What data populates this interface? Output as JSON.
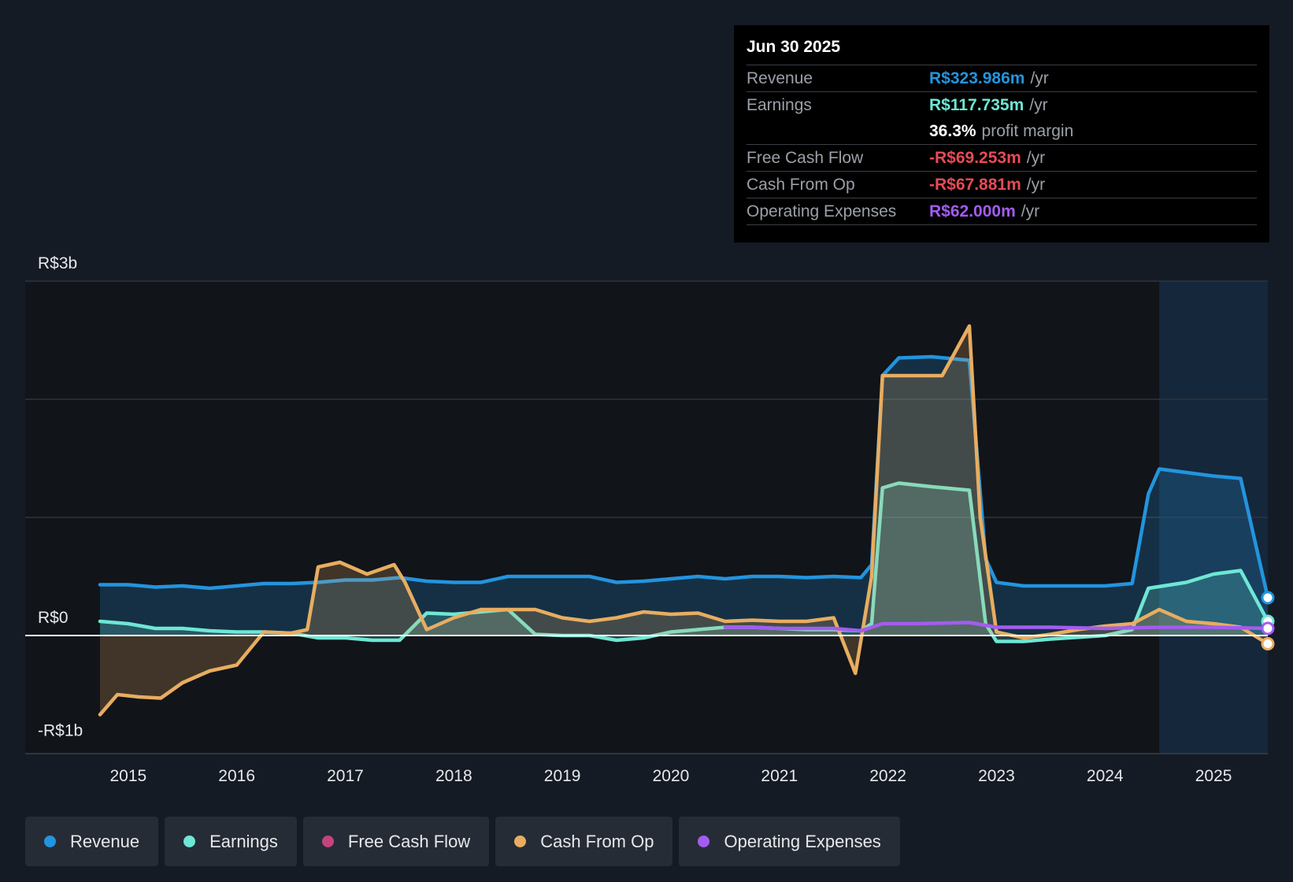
{
  "tooltip": {
    "date": "Jun 30 2025",
    "rows": [
      {
        "label": "Revenue",
        "value": "R$323.986m",
        "unit": "/yr",
        "color": "#2394df"
      },
      {
        "label": "Earnings",
        "value": "R$117.735m",
        "unit": "/yr",
        "color": "#6ee7d5"
      },
      {
        "label": "",
        "value": "36.3%",
        "unit": "profit margin",
        "color": "#ffffff"
      },
      {
        "label": "Free Cash Flow",
        "value": "-R$69.253m",
        "unit": "/yr",
        "color": "#e64b55"
      },
      {
        "label": "Cash From Op",
        "value": "-R$67.881m",
        "unit": "/yr",
        "color": "#e64b55"
      },
      {
        "label": "Operating Expenses",
        "value": "R$62.000m",
        "unit": "/yr",
        "color": "#a35cf0"
      }
    ]
  },
  "legend": [
    {
      "label": "Revenue",
      "color": "#2394df"
    },
    {
      "label": "Earnings",
      "color": "#6ee7d5"
    },
    {
      "label": "Free Cash Flow",
      "color": "#c2447e"
    },
    {
      "label": "Cash From Op",
      "color": "#e8ad60"
    },
    {
      "label": "Operating Expenses",
      "color": "#a35cf0"
    }
  ],
  "chart_data": {
    "type": "line",
    "y_labels": [
      "R$3b",
      "R$0",
      "-R$1b"
    ],
    "ylim": [
      -1.0,
      3.0
    ],
    "y_unit": "R$ billions",
    "xlim": [
      2014.74,
      2025.5
    ],
    "x_ticks": [
      "2015",
      "2016",
      "2017",
      "2018",
      "2019",
      "2020",
      "2021",
      "2022",
      "2023",
      "2024",
      "2025"
    ],
    "gridlines": true,
    "highlight_range": [
      2024.5,
      2025.5
    ],
    "series": [
      {
        "name": "Revenue",
        "color": "#2394df",
        "fill": true,
        "points": [
          [
            2014.74,
            0.43
          ],
          [
            2015.0,
            0.43
          ],
          [
            2015.25,
            0.41
          ],
          [
            2015.5,
            0.42
          ],
          [
            2015.75,
            0.4
          ],
          [
            2016.0,
            0.42
          ],
          [
            2016.25,
            0.44
          ],
          [
            2016.5,
            0.44
          ],
          [
            2016.75,
            0.45
          ],
          [
            2017.0,
            0.47
          ],
          [
            2017.25,
            0.47
          ],
          [
            2017.5,
            0.49
          ],
          [
            2017.75,
            0.46
          ],
          [
            2018.0,
            0.45
          ],
          [
            2018.25,
            0.45
          ],
          [
            2018.5,
            0.5
          ],
          [
            2018.75,
            0.5
          ],
          [
            2019.0,
            0.5
          ],
          [
            2019.25,
            0.5
          ],
          [
            2019.5,
            0.45
          ],
          [
            2019.75,
            0.46
          ],
          [
            2020.0,
            0.48
          ],
          [
            2020.25,
            0.5
          ],
          [
            2020.5,
            0.48
          ],
          [
            2020.75,
            0.5
          ],
          [
            2021.0,
            0.5
          ],
          [
            2021.25,
            0.49
          ],
          [
            2021.5,
            0.5
          ],
          [
            2021.75,
            0.49
          ],
          [
            2021.85,
            0.6
          ],
          [
            2021.95,
            2.2
          ],
          [
            2022.1,
            2.35
          ],
          [
            2022.4,
            2.36
          ],
          [
            2022.75,
            2.33
          ],
          [
            2022.9,
            0.65
          ],
          [
            2023.0,
            0.45
          ],
          [
            2023.25,
            0.42
          ],
          [
            2023.5,
            0.42
          ],
          [
            2024.0,
            0.42
          ],
          [
            2024.25,
            0.44
          ],
          [
            2024.4,
            1.2
          ],
          [
            2024.5,
            1.41
          ],
          [
            2024.75,
            1.38
          ],
          [
            2025.0,
            1.35
          ],
          [
            2025.25,
            1.33
          ],
          [
            2025.5,
            0.32
          ]
        ]
      },
      {
        "name": "Earnings",
        "color": "#6ee7d5",
        "fill": true,
        "points": [
          [
            2014.74,
            0.12
          ],
          [
            2015.0,
            0.1
          ],
          [
            2015.25,
            0.06
          ],
          [
            2015.5,
            0.06
          ],
          [
            2015.75,
            0.04
          ],
          [
            2016.0,
            0.03
          ],
          [
            2016.25,
            0.03
          ],
          [
            2016.5,
            0.02
          ],
          [
            2016.75,
            -0.02
          ],
          [
            2017.0,
            -0.02
          ],
          [
            2017.25,
            -0.04
          ],
          [
            2017.5,
            -0.04
          ],
          [
            2017.75,
            0.19
          ],
          [
            2018.0,
            0.18
          ],
          [
            2018.25,
            0.2
          ],
          [
            2018.5,
            0.22
          ],
          [
            2018.75,
            0.01
          ],
          [
            2019.0,
            0.0
          ],
          [
            2019.25,
            0.0
          ],
          [
            2019.5,
            -0.04
          ],
          [
            2019.75,
            -0.02
          ],
          [
            2020.0,
            0.03
          ],
          [
            2020.25,
            0.05
          ],
          [
            2020.5,
            0.07
          ],
          [
            2020.75,
            0.07
          ],
          [
            2021.0,
            0.06
          ],
          [
            2021.25,
            0.05
          ],
          [
            2021.5,
            0.05
          ],
          [
            2021.75,
            0.04
          ],
          [
            2021.85,
            0.1
          ],
          [
            2021.95,
            1.25
          ],
          [
            2022.1,
            1.29
          ],
          [
            2022.4,
            1.26
          ],
          [
            2022.75,
            1.23
          ],
          [
            2022.9,
            0.1
          ],
          [
            2023.0,
            -0.05
          ],
          [
            2023.25,
            -0.05
          ],
          [
            2023.5,
            -0.03
          ],
          [
            2024.0,
            0.0
          ],
          [
            2024.25,
            0.05
          ],
          [
            2024.4,
            0.4
          ],
          [
            2024.75,
            0.45
          ],
          [
            2025.0,
            0.52
          ],
          [
            2025.25,
            0.55
          ],
          [
            2025.5,
            0.12
          ]
        ]
      },
      {
        "name": "Cash From Op",
        "color": "#e8ad60",
        "fill": true,
        "points": [
          [
            2014.74,
            -0.67
          ],
          [
            2014.9,
            -0.5
          ],
          [
            2015.1,
            -0.52
          ],
          [
            2015.3,
            -0.53
          ],
          [
            2015.5,
            -0.4
          ],
          [
            2015.75,
            -0.3
          ],
          [
            2016.0,
            -0.25
          ],
          [
            2016.25,
            0.03
          ],
          [
            2016.5,
            0.02
          ],
          [
            2016.65,
            0.05
          ],
          [
            2016.75,
            0.58
          ],
          [
            2016.95,
            0.62
          ],
          [
            2017.2,
            0.52
          ],
          [
            2017.45,
            0.6
          ],
          [
            2017.55,
            0.45
          ],
          [
            2017.75,
            0.05
          ],
          [
            2018.0,
            0.15
          ],
          [
            2018.25,
            0.22
          ],
          [
            2018.5,
            0.22
          ],
          [
            2018.75,
            0.22
          ],
          [
            2019.0,
            0.15
          ],
          [
            2019.25,
            0.12
          ],
          [
            2019.5,
            0.15
          ],
          [
            2019.75,
            0.2
          ],
          [
            2020.0,
            0.18
          ],
          [
            2020.25,
            0.19
          ],
          [
            2020.5,
            0.12
          ],
          [
            2020.75,
            0.13
          ],
          [
            2021.0,
            0.12
          ],
          [
            2021.25,
            0.12
          ],
          [
            2021.5,
            0.15
          ],
          [
            2021.7,
            -0.32
          ],
          [
            2021.85,
            0.5
          ],
          [
            2021.95,
            2.2
          ],
          [
            2022.2,
            2.2
          ],
          [
            2022.5,
            2.2
          ],
          [
            2022.75,
            2.62
          ],
          [
            2022.85,
            1.0
          ],
          [
            2023.0,
            0.03
          ],
          [
            2023.25,
            -0.02
          ],
          [
            2023.5,
            0.01
          ],
          [
            2023.75,
            0.05
          ],
          [
            2024.0,
            0.08
          ],
          [
            2024.25,
            0.1
          ],
          [
            2024.5,
            0.22
          ],
          [
            2024.75,
            0.12
          ],
          [
            2025.0,
            0.1
          ],
          [
            2025.25,
            0.07
          ],
          [
            2025.5,
            -0.07
          ]
        ]
      },
      {
        "name": "Operating Expenses",
        "color": "#a35cf0",
        "fill": false,
        "points": [
          [
            2020.5,
            0.07
          ],
          [
            2020.75,
            0.07
          ],
          [
            2021.0,
            0.06
          ],
          [
            2021.25,
            0.06
          ],
          [
            2021.5,
            0.06
          ],
          [
            2021.75,
            0.04
          ],
          [
            2021.95,
            0.1
          ],
          [
            2022.25,
            0.1
          ],
          [
            2022.75,
            0.11
          ],
          [
            2023.0,
            0.07
          ],
          [
            2023.5,
            0.07
          ],
          [
            2024.0,
            0.06
          ],
          [
            2024.5,
            0.07
          ],
          [
            2025.0,
            0.07
          ],
          [
            2025.5,
            0.06
          ]
        ]
      }
    ]
  }
}
